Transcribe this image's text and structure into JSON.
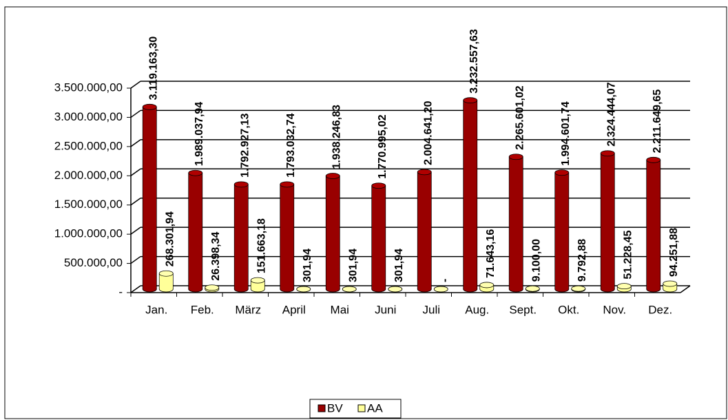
{
  "chart_data": {
    "type": "bar",
    "categories": [
      "Jan.",
      "Feb.",
      "März",
      "April",
      "Mai",
      "Juni",
      "Juli",
      "Aug.",
      "Sept.",
      "Okt.",
      "Nov.",
      "Dez."
    ],
    "series": [
      {
        "name": "BV",
        "color": "#990000",
        "values": [
          3119163.3,
          1989037.94,
          1792927.13,
          1793032.74,
          1938246.83,
          1770995.02,
          2004641.2,
          3232557.63,
          2265601.02,
          1994601.74,
          2324444.07,
          2211649.65
        ],
        "value_labels": [
          "3.119.163,30",
          "1.989.037,94",
          "1.792.927,13",
          "1.793.032,74",
          "1.938.246,83",
          "1.770.995,02",
          "2.004.641,20",
          "3.232.557,63",
          "2.265.601,02",
          "1.994.601,74",
          "2.324.444,07",
          "2.211.649,65"
        ]
      },
      {
        "name": "AA",
        "color": "#ffff99",
        "values": [
          268301.94,
          26398.34,
          151663.18,
          301.94,
          301.94,
          301.94,
          0,
          71643.16,
          9100.0,
          9792.88,
          51228.45,
          94251.88
        ],
        "value_labels": [
          "268.301,94",
          "26.398,34",
          "151.663,18",
          "301,94",
          "301,94",
          "301,94",
          "-",
          "71.643,16",
          "9.100,00",
          "9.792,88",
          "51.228,45",
          "94.251,88"
        ]
      }
    ],
    "ylim": [
      0,
      3500000
    ],
    "yticks": [
      {
        "value": 0,
        "label": "-"
      },
      {
        "value": 500000,
        "label": "500.000,00"
      },
      {
        "value": 1000000,
        "label": "1.000.000,00"
      },
      {
        "value": 1500000,
        "label": "1.500.000,00"
      },
      {
        "value": 2000000,
        "label": "2.000.000,00"
      },
      {
        "value": 2500000,
        "label": "2.500.000,00"
      },
      {
        "value": 3000000,
        "label": "3.000.000,00"
      },
      {
        "value": 3500000,
        "label": "3.500.000,00"
      }
    ],
    "grid": true,
    "legend": "bottom"
  }
}
